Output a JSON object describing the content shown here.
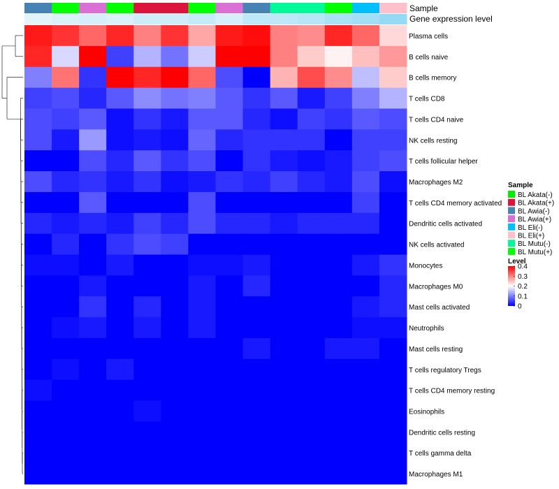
{
  "chart_data": {
    "type": "heatmap",
    "annotation_labels": [
      "Sample",
      "Gene expression level"
    ],
    "columns": [
      {
        "sample": "BL Awia(-)"
      },
      {
        "sample": "BL Mutu(+)"
      },
      {
        "sample": "BL Awia(+)"
      },
      {
        "sample": "BL Mutu(+)"
      },
      {
        "sample": "BL Akata(+)"
      },
      {
        "sample": "BL Akata(+)"
      },
      {
        "sample": "BL Mutu(+)"
      },
      {
        "sample": "BL Awia(+)"
      },
      {
        "sample": "BL Awia(-)"
      },
      {
        "sample": "BL Mutu(-)"
      },
      {
        "sample": "BL Mutu(-)"
      },
      {
        "sample": "BL Mutu(+)"
      },
      {
        "sample": "BL Eli(-)"
      },
      {
        "sample": "BL Eli(+)"
      }
    ],
    "gene_expression_level": [
      0.05,
      0.1,
      0.15,
      0.1,
      0.2,
      0.2,
      0.25,
      0.15,
      0.3,
      0.3,
      0.35,
      0.45,
      0.5,
      0.6
    ],
    "rows": [
      "Plasma cells",
      "B cells naive",
      "B cells memory",
      "T cells CD8",
      "T cells CD4 naive",
      "NK cells resting",
      "T cells follicular helper",
      "Macrophages M2",
      "T cells CD4 memory activated",
      "Dendritic cells activated",
      "NK cells activated",
      "Monocytes",
      "Macrophages M0",
      "Mast cells activated",
      "Neutrophils",
      "Mast cells resting",
      "T cells regulatory  Tregs",
      "T cells CD4 memory resting",
      "Eosinophils",
      "Dendritic cells resting",
      "T cells gamma delta",
      "Macrophages M1"
    ],
    "values": [
      [
        0.38,
        0.36,
        0.32,
        0.37,
        0.3,
        0.36,
        0.27,
        0.38,
        0.39,
        0.3,
        0.29,
        0.37,
        0.32,
        0.23
      ],
      [
        0.37,
        0.17,
        0.4,
        0.05,
        0.14,
        0.09,
        0.16,
        0.4,
        0.4,
        0.3,
        0.24,
        0.21,
        0.25,
        0.28
      ],
      [
        0.1,
        0.31,
        0.04,
        0.4,
        0.37,
        0.4,
        0.32,
        0.06,
        0.0,
        0.26,
        0.34,
        0.29,
        0.15,
        0.24
      ],
      [
        0.05,
        0.06,
        0.03,
        0.07,
        0.11,
        0.09,
        0.1,
        0.07,
        0.04,
        0.07,
        0.02,
        0.05,
        0.1,
        0.14
      ],
      [
        0.06,
        0.05,
        0.07,
        0.01,
        0.04,
        0.02,
        0.07,
        0.07,
        0.03,
        0.01,
        0.05,
        0.04,
        0.07,
        0.06
      ],
      [
        0.06,
        0.02,
        0.12,
        0.01,
        0.02,
        0.01,
        0.08,
        0.03,
        0.04,
        0.04,
        0.04,
        0.0,
        0.05,
        0.05
      ],
      [
        0.0,
        0.0,
        0.06,
        0.03,
        0.07,
        0.04,
        0.06,
        0.0,
        0.04,
        0.02,
        0.01,
        0.02,
        0.05,
        0.06
      ],
      [
        0.06,
        0.03,
        0.04,
        0.02,
        0.04,
        0.01,
        0.02,
        0.04,
        0.03,
        0.05,
        0.03,
        0.02,
        0.06,
        0.01
      ],
      [
        0.0,
        0.0,
        0.07,
        0.0,
        0.0,
        0.0,
        0.06,
        0.0,
        0.0,
        0.0,
        0.0,
        0.0,
        0.05,
        0.0
      ],
      [
        0.03,
        0.02,
        0.03,
        0.02,
        0.05,
        0.03,
        0.06,
        0.03,
        0.03,
        0.02,
        0.03,
        0.03,
        0.03,
        0.0
      ],
      [
        0.0,
        0.03,
        0.0,
        0.04,
        0.06,
        0.05,
        0.0,
        0.0,
        0.0,
        0.0,
        0.0,
        0.0,
        0.0,
        0.0
      ],
      [
        0.01,
        0.01,
        0.0,
        0.02,
        0.0,
        0.0,
        0.01,
        0.01,
        0.02,
        0.0,
        0.0,
        0.0,
        0.02,
        0.04
      ],
      [
        0.0,
        0.0,
        0.02,
        0.0,
        0.0,
        0.0,
        0.02,
        0.0,
        0.03,
        0.0,
        0.0,
        0.0,
        0.0,
        0.03
      ],
      [
        0.0,
        0.0,
        0.04,
        0.0,
        0.03,
        0.0,
        0.02,
        0.0,
        0.0,
        0.0,
        0.0,
        0.0,
        0.02,
        0.03
      ],
      [
        0.0,
        0.01,
        0.02,
        0.0,
        0.02,
        0.0,
        0.02,
        0.0,
        0.0,
        0.0,
        0.0,
        0.0,
        0.01,
        0.01
      ],
      [
        0.0,
        0.0,
        0.0,
        0.0,
        0.0,
        0.0,
        0.0,
        0.0,
        0.02,
        0.0,
        0.0,
        0.02,
        0.02,
        0.0
      ],
      [
        0.0,
        0.01,
        0.0,
        0.02,
        0.0,
        0.0,
        0.0,
        0.0,
        0.0,
        0.0,
        0.0,
        0.0,
        0.0,
        0.0
      ],
      [
        0.01,
        0.0,
        0.0,
        0.0,
        0.0,
        0.0,
        0.0,
        0.0,
        0.0,
        0.0,
        0.0,
        0.0,
        0.0,
        0.0
      ],
      [
        0.0,
        0.0,
        0.0,
        0.0,
        0.01,
        0.0,
        0.0,
        0.0,
        0.0,
        0.0,
        0.0,
        0.0,
        0.0,
        0.0
      ],
      [
        0.0,
        0.0,
        0.0,
        0.0,
        0.0,
        0.0,
        0.0,
        0.0,
        0.0,
        0.0,
        0.0,
        0.0,
        0.0,
        0.0
      ],
      [
        0.0,
        0.0,
        0.0,
        0.0,
        0.0,
        0.0,
        0.0,
        0.0,
        0.0,
        0.0,
        0.0,
        0.0,
        0.0,
        0.0
      ],
      [
        0.0,
        0.0,
        0.0,
        0.0,
        0.0,
        0.0,
        0.0,
        0.0,
        0.0,
        0.0,
        0.0,
        0.0,
        0.0,
        0.0
      ]
    ],
    "color_scale": {
      "low": "#0000FF",
      "mid": "#FFFFFF",
      "high": "#FF0000",
      "min": 0,
      "mid_value": 0.2,
      "max": 0.4
    },
    "legends": {
      "sample": {
        "title": "Sample",
        "entries": [
          {
            "label": "BL Akata(-)",
            "color": "#00EE00"
          },
          {
            "label": "BL Akata(+)",
            "color": "#DC143C"
          },
          {
            "label": "BL Awia(-)",
            "color": "#4682B4"
          },
          {
            "label": "BL Awia(+)",
            "color": "#DA70D6"
          },
          {
            "label": "BL Eli(-)",
            "color": "#00BFFF"
          },
          {
            "label": "BL Eli(+)",
            "color": "#FFC0CB"
          },
          {
            "label": "BL Mutu(-)",
            "color": "#00FA9A"
          },
          {
            "label": "BL Mutu(+)",
            "color": "#00FF00"
          }
        ]
      },
      "level": {
        "title": "Level",
        "ticks": [
          "0.4",
          "0.3",
          "0.2",
          "0.1",
          "0"
        ],
        "tick_values": [
          0.4,
          0.3,
          0.2,
          0.1,
          0
        ]
      }
    },
    "gene_level_colors": {
      "low": "#E9F6FB",
      "high": "#5BC8F0"
    },
    "row_dendrogram": true
  }
}
